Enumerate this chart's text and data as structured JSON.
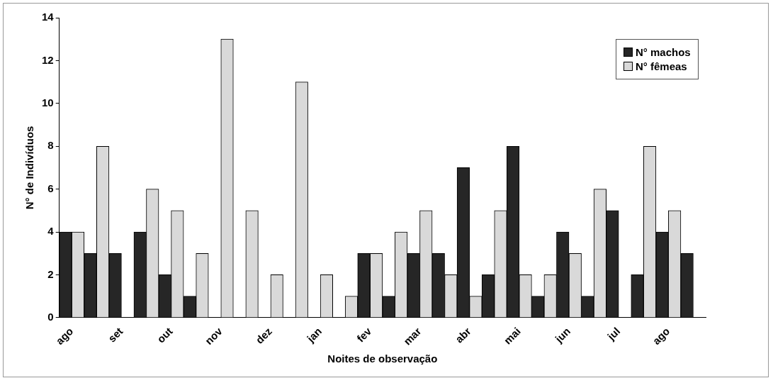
{
  "chart_data": {
    "type": "bar",
    "xlabel": "Noites de observação",
    "ylabel": "N° de Indivíduos",
    "categories": [
      "ago",
      null,
      "set",
      null,
      "out",
      null,
      "nov",
      null,
      "dez",
      null,
      "jan",
      null,
      "fev",
      null,
      "mar",
      null,
      "abr",
      null,
      "mai",
      null,
      "jun",
      null,
      "jul",
      null,
      "ago",
      null
    ],
    "series": [
      {
        "name": "N° machos",
        "color": "#262626",
        "values": [
          4,
          3,
          3,
          4,
          2,
          1,
          0,
          0,
          0,
          0,
          0,
          0,
          3,
          1,
          3,
          3,
          7,
          2,
          8,
          1,
          4,
          1,
          5,
          2,
          4,
          3
        ]
      },
      {
        "name": "N° fêmeas",
        "color": "#d9d9d9",
        "values": [
          4,
          8,
          0,
          6,
          5,
          3,
          13,
          5,
          2,
          11,
          2,
          1,
          3,
          4,
          5,
          2,
          1,
          5,
          2,
          2,
          3,
          6,
          0,
          8,
          5,
          0
        ]
      }
    ],
    "ylim": [
      0,
      14
    ],
    "yticks": [
      0,
      2,
      4,
      6,
      8,
      10,
      12,
      14
    ],
    "grid": false,
    "legend": "top right"
  }
}
